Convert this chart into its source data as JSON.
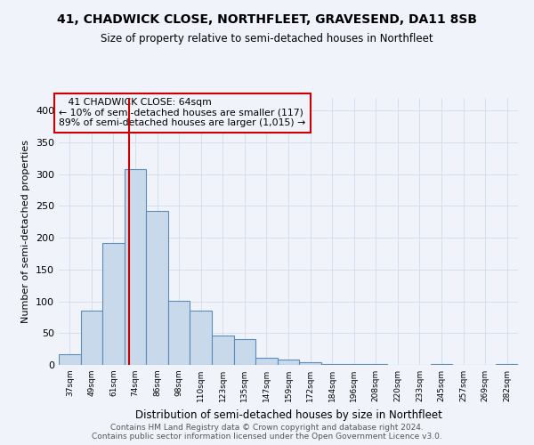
{
  "title": "41, CHADWICK CLOSE, NORTHFLEET, GRAVESEND, DA11 8SB",
  "subtitle": "Size of property relative to semi-detached houses in Northfleet",
  "xlabel": "Distribution of semi-detached houses by size in Northfleet",
  "ylabel": "Number of semi-detached properties",
  "categories": [
    "37sqm",
    "49sqm",
    "61sqm",
    "74sqm",
    "86sqm",
    "98sqm",
    "110sqm",
    "123sqm",
    "135sqm",
    "147sqm",
    "159sqm",
    "172sqm",
    "184sqm",
    "196sqm",
    "208sqm",
    "220sqm",
    "233sqm",
    "245sqm",
    "257sqm",
    "269sqm",
    "282sqm"
  ],
  "values": [
    17,
    85,
    192,
    308,
    242,
    101,
    85,
    46,
    40,
    11,
    9,
    4,
    1,
    1,
    1,
    0,
    0,
    1,
    0,
    0,
    1
  ],
  "bar_color": "#c9d9ec",
  "bar_edge_color": "#5b8db8",
  "red_line_x": 2.72,
  "annotation_title": "41 CHADWICK CLOSE: 64sqm",
  "annotation_line1": "← 10% of semi-detached houses are smaller (117)",
  "annotation_line2": "89% of semi-detached houses are larger (1,015) →",
  "annotation_box_color": "#cc0000",
  "ylim": [
    0,
    420
  ],
  "yticks": [
    0,
    50,
    100,
    150,
    200,
    250,
    300,
    350,
    400
  ],
  "footer_line1": "Contains HM Land Registry data © Crown copyright and database right 2024.",
  "footer_line2": "Contains public sector information licensed under the Open Government Licence v3.0.",
  "bg_color": "#f0f4fa",
  "grid_color": "#c8d8e8"
}
